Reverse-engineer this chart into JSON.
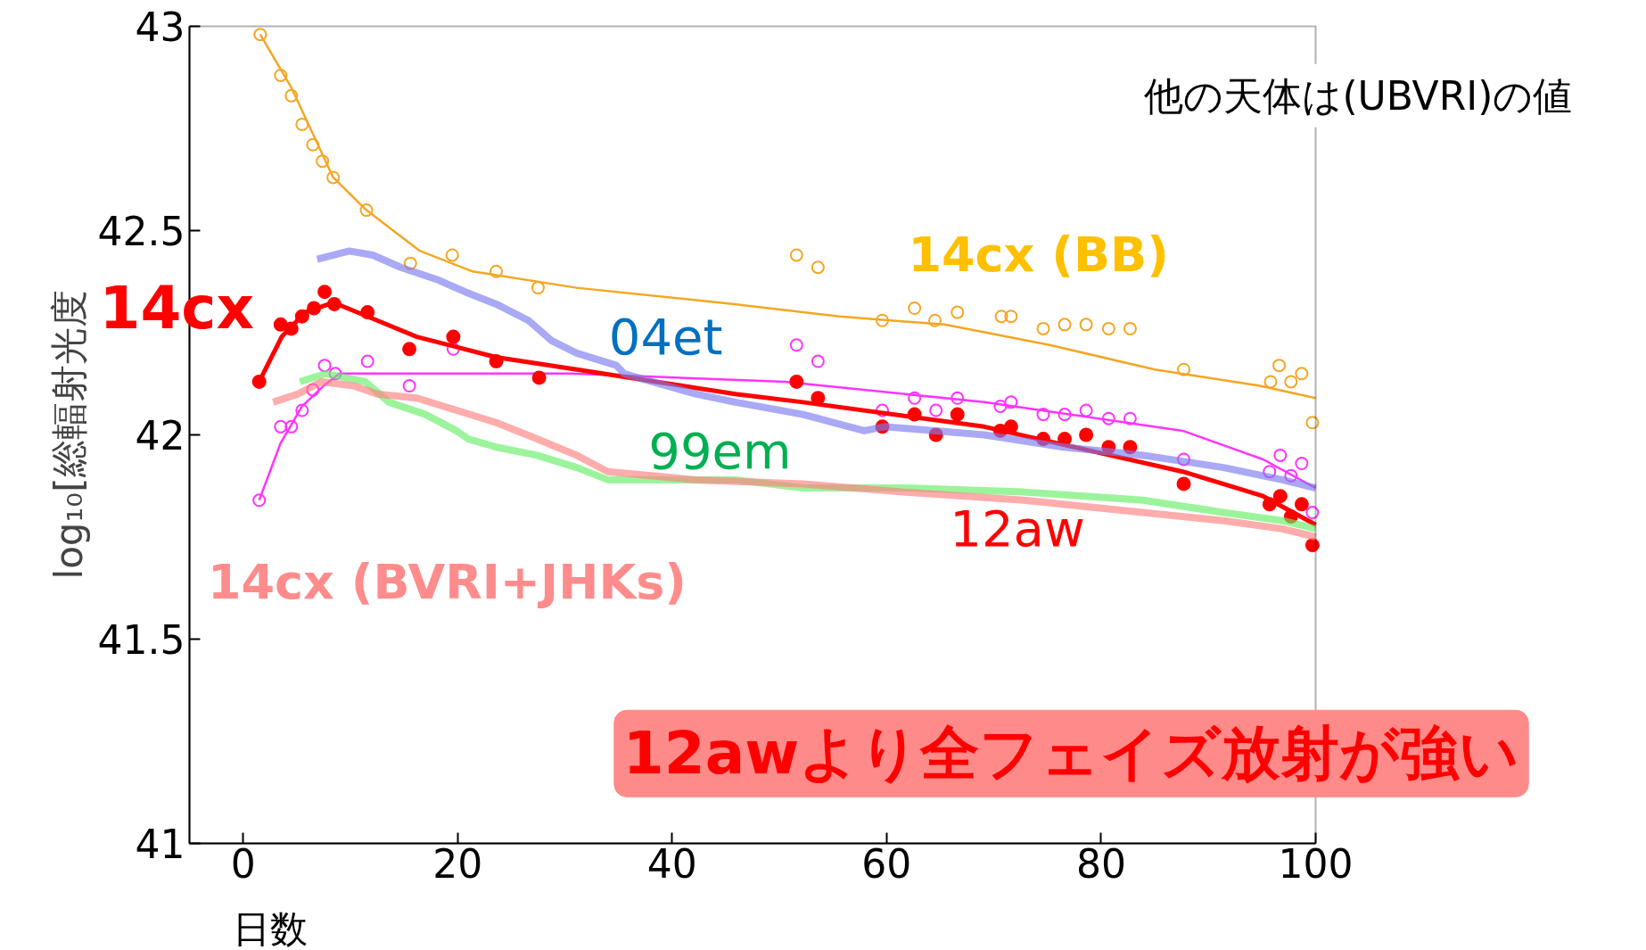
{
  "chart_data": {
    "type": "scatter",
    "xlabel": "日数",
    "ylabel": "log₁₀[総輻射光度",
    "xlim": [
      -5,
      100
    ],
    "xticks": [
      0,
      20,
      40,
      60,
      80,
      100
    ],
    "ylim": [
      41,
      43
    ],
    "yticks": [
      41,
      41.5,
      42,
      42.5,
      43
    ],
    "grid": false,
    "marker": "circle",
    "series": [
      {
        "name": "14cx (BB)",
        "color": "#f5a623",
        "x": [
          1.6,
          3.5,
          4.5,
          5.5,
          6.5,
          7.4,
          8.4,
          11.5,
          15.6,
          19.5,
          23.6,
          27.5,
          51.6,
          53.6,
          59.6,
          62.6,
          64.5,
          66.6,
          70.7,
          71.6,
          74.6,
          76.6,
          78.6,
          80.7,
          82.7,
          87.7,
          95.8,
          96.6,
          97.7,
          98.7,
          99.7
        ],
        "values": [
          42.98,
          42.88,
          42.83,
          42.76,
          42.71,
          42.67,
          42.63,
          42.55,
          42.42,
          42.44,
          42.4,
          42.36,
          42.44,
          42.41,
          42.28,
          42.31,
          42.28,
          42.3,
          42.29,
          42.29,
          42.26,
          42.27,
          42.27,
          42.26,
          42.26,
          42.16,
          42.13,
          42.17,
          42.13,
          42.15,
          42.03
        ]
      },
      {
        "type": "line",
        "marker": "none",
        "color": "#f5a623",
        "x": [
          1.6,
          4.5,
          8.4,
          11.5,
          16.5,
          21.4,
          31.1,
          45.8,
          55.6,
          65.4,
          75.2,
          85.0,
          94.8,
          100
        ],
        "values": [
          42.98,
          42.85,
          42.63,
          42.55,
          42.45,
          42.4,
          42.36,
          42.32,
          42.29,
          42.27,
          42.22,
          42.16,
          42.12,
          42.09
        ]
      },
      {
        "name": "14cx (BVRI+JHKs)",
        "color": "#ff33ff",
        "x": [
          1.5,
          3.5,
          4.5,
          5.5,
          6.5,
          7.6,
          8.6,
          11.6,
          15.5,
          19.6,
          51.6,
          53.6,
          59.6,
          62.6,
          64.6,
          66.6,
          70.6,
          71.6,
          74.6,
          76.6,
          78.6,
          80.7,
          82.7,
          87.7,
          95.7,
          96.7,
          97.7,
          98.7,
          99.7
        ],
        "values": [
          41.84,
          42.02,
          42.02,
          42.06,
          42.11,
          42.17,
          42.15,
          42.18,
          42.12,
          42.21,
          42.22,
          42.18,
          42.06,
          42.09,
          42.06,
          42.09,
          42.07,
          42.08,
          42.05,
          42.05,
          42.06,
          42.04,
          42.04,
          41.94,
          41.91,
          41.95,
          41.9,
          41.93,
          41.81
        ]
      },
      {
        "type": "line",
        "marker": "none",
        "color": "#ff33ff",
        "x": [
          1.5,
          3.5,
          5.5,
          7.5,
          9,
          15,
          30.5,
          50.5,
          69.1,
          87.6,
          95.1,
          100
        ],
        "values": [
          41.84,
          41.98,
          42.07,
          42.12,
          42.15,
          42.15,
          42.15,
          42.13,
          42.08,
          42.01,
          41.94,
          41.87
        ]
      },
      {
        "name": "14cx",
        "color": "#ff0000",
        "x": [
          1.5,
          3.5,
          4.5,
          5.5,
          6.6,
          7.6,
          8.5,
          11.6,
          15.5,
          19.6,
          23.6,
          27.6,
          51.6,
          53.6,
          59.6,
          62.6,
          64.6,
          66.6,
          70.6,
          71.6,
          74.6,
          76.6,
          78.6,
          80.7,
          82.7,
          87.7,
          95.7,
          96.7,
          97.7,
          98.7,
          99.7
        ],
        "values": [
          42.13,
          42.27,
          42.26,
          42.29,
          42.31,
          42.35,
          42.32,
          42.3,
          42.21,
          42.24,
          42.18,
          42.14,
          42.13,
          42.09,
          42.02,
          42.05,
          42.0,
          42.05,
          42.01,
          42.02,
          41.99,
          41.99,
          42.0,
          41.97,
          41.97,
          41.88,
          41.83,
          41.85,
          41.8,
          41.83,
          41.73
        ]
      },
      {
        "type": "line",
        "marker": "none",
        "color": "#ff0000",
        "x": [
          1.5,
          3.6,
          5.8,
          8.0,
          8.8,
          12.5,
          16.2,
          23.6,
          31.1,
          38.5,
          45.9,
          52.2,
          69.1,
          87.6,
          95.1,
          100
        ],
        "values": [
          42.13,
          42.24,
          42.3,
          42.32,
          42.32,
          42.28,
          42.24,
          42.19,
          42.16,
          42.13,
          42.1,
          42.08,
          42.02,
          41.91,
          41.85,
          41.78
        ]
      },
      {
        "name": "04et",
        "type": "line",
        "marker": "none",
        "color": "#7b7bf0",
        "x": [
          6.9,
          9.9,
          12.1,
          14.7,
          18.1,
          20.7,
          23.6,
          26.6,
          28.8,
          31.1,
          34.8,
          35.5,
          42.2,
          45.9,
          52.2,
          57.9,
          59.8,
          69.1,
          76.5,
          83.9,
          91.4,
          96.9,
          100
        ],
        "values": [
          42.43,
          42.45,
          42.44,
          42.41,
          42.38,
          42.35,
          42.32,
          42.28,
          42.23,
          42.2,
          42.17,
          42.15,
          42.1,
          42.08,
          42.05,
          42.01,
          42.02,
          42.0,
          41.97,
          41.95,
          41.92,
          41.89,
          41.87
        ]
      },
      {
        "name": "99em",
        "type": "line",
        "marker": "none",
        "color": "#66ee66",
        "x": [
          5.3,
          7.7,
          11.4,
          13.6,
          17.0,
          19.9,
          21.0,
          23.6,
          27.4,
          31.1,
          34.0,
          38.5,
          45.9,
          52.2,
          61.6,
          72.8,
          83.9,
          91.4,
          96.9,
          100
        ],
        "values": [
          42.13,
          42.15,
          42.13,
          42.08,
          42.05,
          42.01,
          41.99,
          41.97,
          41.95,
          41.92,
          41.89,
          41.89,
          41.89,
          41.87,
          41.87,
          41.86,
          41.84,
          41.81,
          41.79,
          41.77
        ]
      },
      {
        "name": "12aw",
        "type": "line",
        "marker": "none",
        "color": "#ff8080",
        "x": [
          2.8,
          5.1,
          7.3,
          10.3,
          12.5,
          16.2,
          19.9,
          23.6,
          27.4,
          31.1,
          34.0,
          42.2,
          52.2,
          61.6,
          72.8,
          83.9,
          91.4,
          96.9,
          100
        ],
        "values": [
          42.08,
          42.1,
          42.13,
          42.12,
          42.1,
          42.09,
          42.06,
          42.03,
          41.99,
          41.95,
          41.91,
          41.89,
          41.88,
          41.86,
          41.84,
          41.81,
          41.79,
          41.77,
          41.75
        ]
      }
    ],
    "annotations": [
      "他の天体は(UBVRI)の値",
      "12awより全フェイズ放射が強い"
    ]
  }
}
